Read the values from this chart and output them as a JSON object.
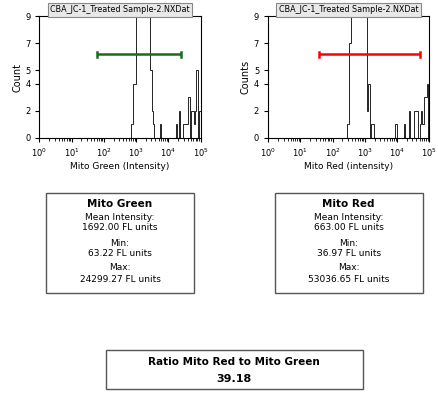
{
  "title_left": "CBA_JC-1_Treated Sample-2.NXDat",
  "title_right": "CBA_JC-1_Treated Sample-2.NXDat",
  "xlabel_left": "Mito Green (Intensity)",
  "xlabel_right": "Mito Red (intensity)",
  "ylabel_left": "Count",
  "ylabel_right": "Counts",
  "xlim": [
    1.0,
    100000.0
  ],
  "ylim": [
    0,
    9
  ],
  "yticks": [
    0,
    2,
    4,
    5,
    7,
    9
  ],
  "green_color": "#1a6b1a",
  "red_color": "#ff0000",
  "bar_color": "black",
  "mito_green_title": "Mito Green",
  "mito_green_line1": "Mean Intensity:",
  "mito_green_line2": "1692.00 FL units",
  "mito_green_line3": "Min:",
  "mito_green_line4": "63.22 FL units",
  "mito_green_line5": "Max:",
  "mito_green_line6": "24299.27 FL units",
  "mito_red_title": "Mito Red",
  "mito_red_line1": "Mean Intensity:",
  "mito_red_line2": "663.00 FL units",
  "mito_red_line3": "Min:",
  "mito_red_line4": "36.97 FL units",
  "mito_red_line5": "Max:",
  "mito_red_line6": "53036.65 FL units",
  "ratio_label": "Ratio Mito Red to Mito Green",
  "ratio_value": "39.18",
  "green_bracket_xmin": 63.22,
  "green_bracket_xmax": 24299.27,
  "green_bracket_y": 6.2,
  "red_bracket_xmin": 36.97,
  "red_bracket_xmax": 53036.65,
  "red_bracket_y": 6.2,
  "tick_cap_half": 0.18
}
